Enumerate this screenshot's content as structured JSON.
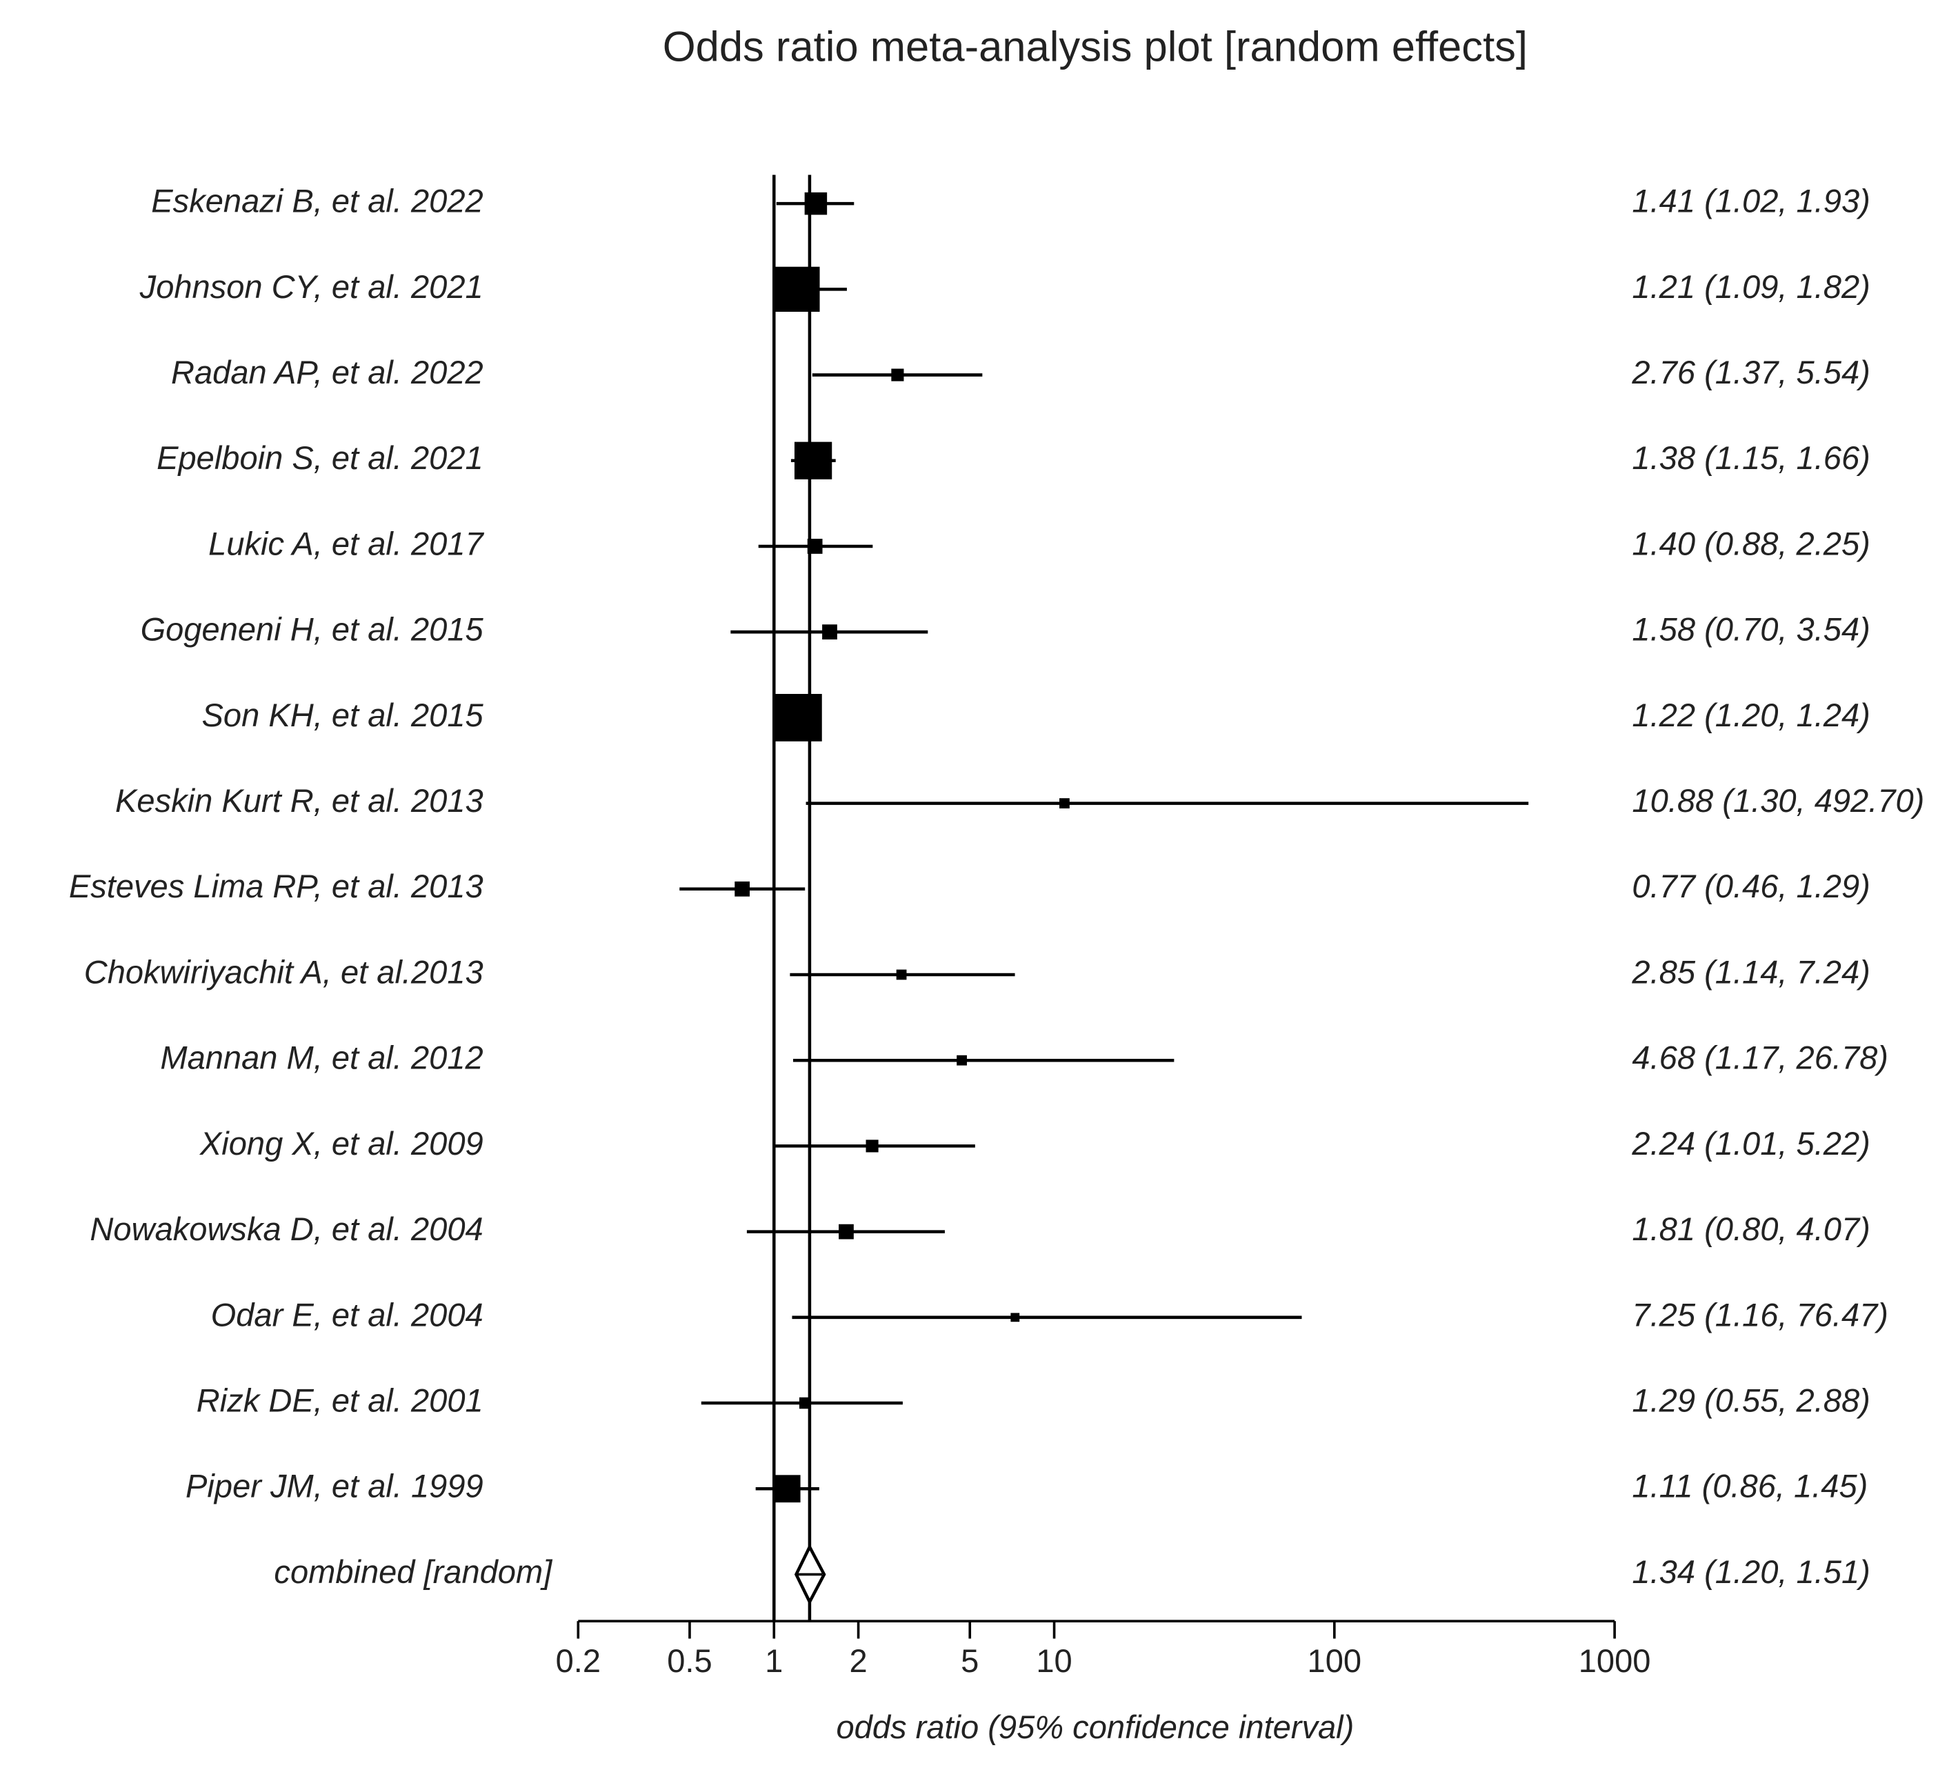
{
  "chart_data": {
    "type": "forest",
    "title": "Odds ratio meta-analysis plot [random effects]",
    "xlabel": "odds ratio (95% confidence interval)",
    "xlim": [
      0.2,
      1000
    ],
    "xticks": [
      0.2,
      0.5,
      1,
      2,
      5,
      10,
      100,
      1000
    ],
    "log_x": true,
    "reference_line": 1,
    "color": "#000000",
    "studies": [
      "Eskenazi B, et al. 2022",
      "Johnson CY, et al. 2021",
      "Radan AP, et al. 2022",
      "Epelboin S, et al. 2021",
      "Lukic A, et al. 2017",
      "Gogeneni H, et al. 2015",
      "Son KH, et al. 2015",
      "Keskin Kurt R, et al. 2013",
      "Esteves Lima RP, et al. 2013",
      "Chokwiriyachit A, et al.2013",
      "Mannan M, et al. 2012",
      "Xiong X, et al. 2009",
      "Nowakowska D, et al. 2004",
      "Odar E, et al. 2004",
      "Rizk DE, et al. 2001",
      "Piper JM, et al. 1999"
    ],
    "values": [
      1.41,
      1.21,
      2.76,
      1.38,
      1.4,
      1.58,
      1.22,
      10.88,
      0.77,
      2.85,
      4.68,
      2.24,
      1.81,
      7.25,
      1.29,
      1.11
    ],
    "lower": [
      1.02,
      1.09,
      1.37,
      1.15,
      0.88,
      0.7,
      1.2,
      1.3,
      0.46,
      1.14,
      1.17,
      1.01,
      0.8,
      1.16,
      0.55,
      0.86
    ],
    "upper": [
      1.93,
      1.82,
      5.54,
      1.66,
      2.25,
      3.54,
      1.24,
      492.7,
      1.29,
      7.24,
      26.78,
      5.22,
      4.07,
      76.47,
      2.88,
      1.45
    ],
    "weights": [
      5.8,
      23.4,
      1.8,
      16.2,
      2.6,
      2.6,
      26.0,
      1.2,
      2.6,
      1.2,
      1.2,
      1.8,
      2.6,
      0.9,
      1.5,
      8.7
    ],
    "value_labels": [
      "1.41 (1.02, 1.93)",
      "1.21 (1.09, 1.82)",
      "2.76 (1.37, 5.54)",
      "1.38 (1.15, 1.66)",
      "1.40 (0.88, 2.25)",
      "1.58 (0.70, 3.54)",
      "1.22 (1.20, 1.24)",
      "10.88 (1.30, 492.70)",
      "0.77 (0.46, 1.29)",
      "2.85 (1.14, 7.24)",
      "4.68 (1.17, 26.78)",
      "2.24 (1.01, 5.22)",
      "1.81 (0.80, 4.07)",
      "7.25 (1.16, 76.47)",
      "1.29 (0.55, 2.88)",
      "1.11 (0.86, 1.45)"
    ],
    "combined": {
      "name": "combined [random]",
      "value": 1.34,
      "lower": 1.2,
      "upper": 1.51,
      "value_label": "1.34 (1.20, 1.51)"
    }
  }
}
